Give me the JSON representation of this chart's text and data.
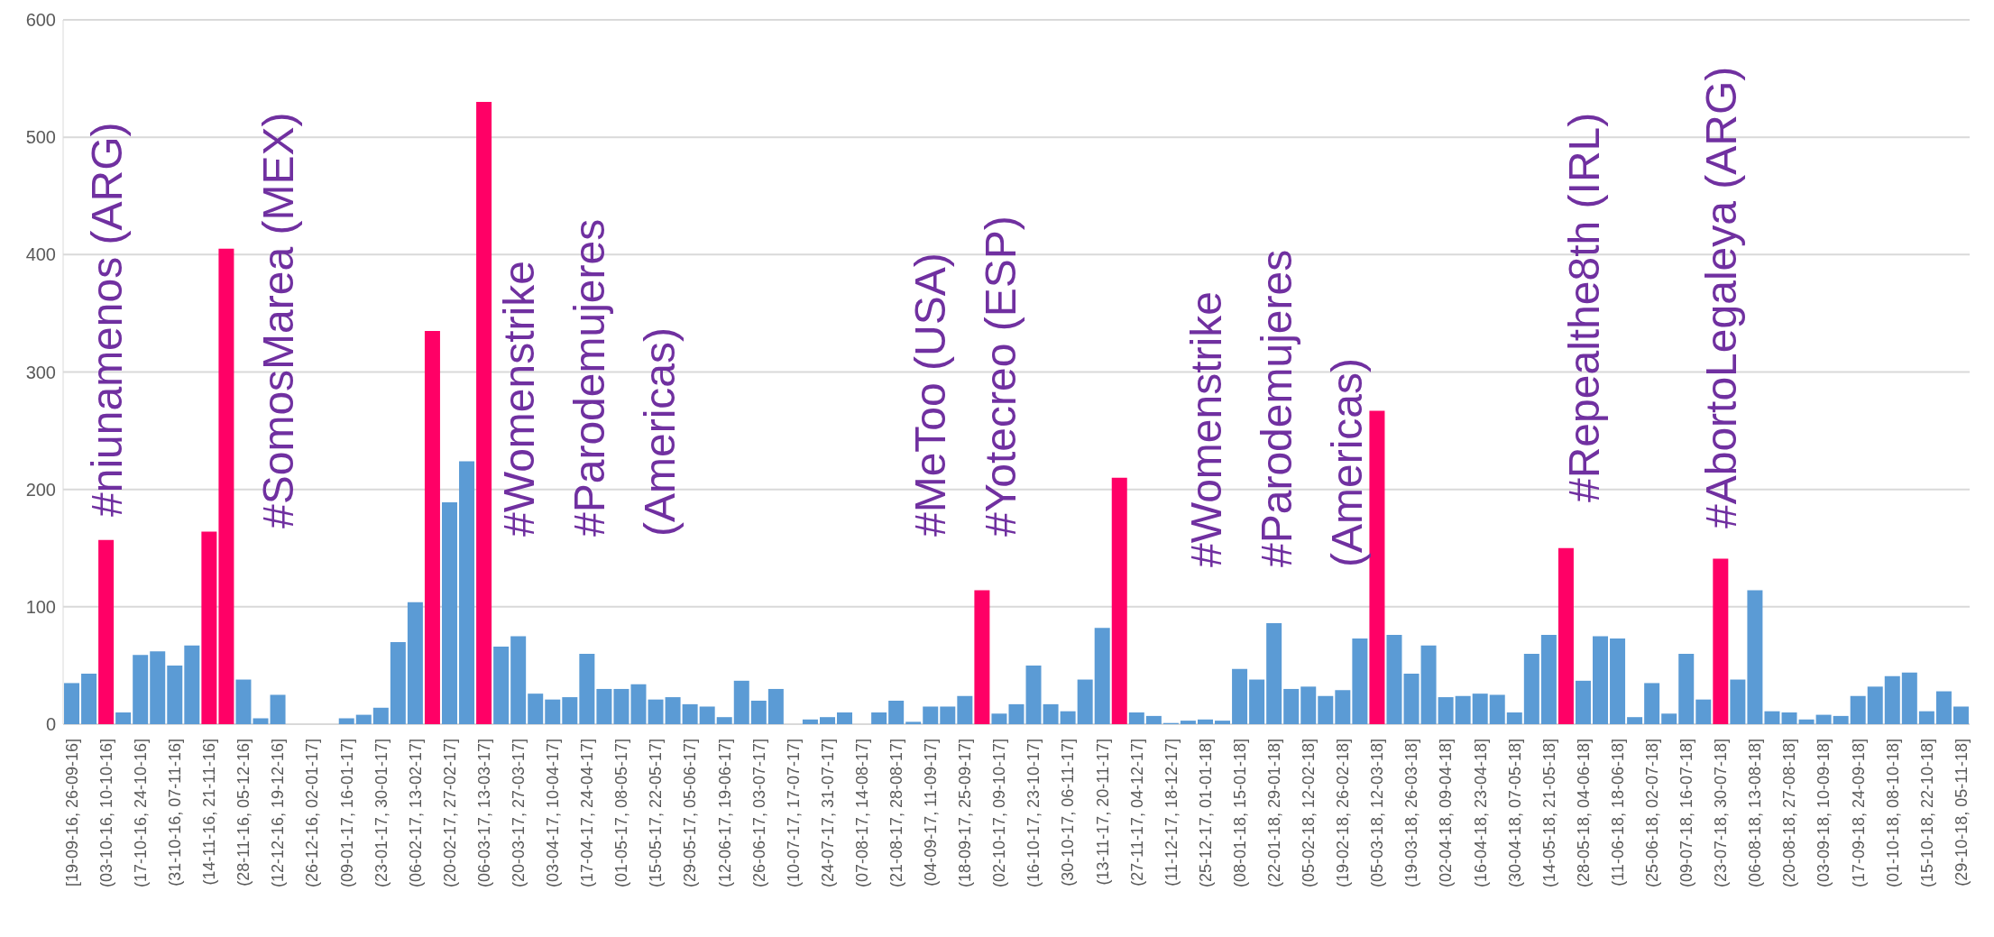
{
  "chart_data": {
    "type": "bar",
    "categories": [
      "[19-09-16, 26-09-16]",
      null,
      "(03-10-16, 10-10-16]",
      null,
      "(17-10-16, 24-10-16]",
      null,
      "(31-10-16, 07-11-16]",
      null,
      "(14-11-16, 21-11-16]",
      null,
      "(28-11-16, 05-12-16]",
      null,
      "(12-12-16, 19-12-16]",
      null,
      "(26-12-16, 02-01-17]",
      null,
      "(09-01-17, 16-01-17]",
      null,
      "(23-01-17, 30-01-17]",
      null,
      "(06-02-17, 13-02-17]",
      null,
      "(20-02-17, 27-02-17]",
      null,
      "(06-03-17, 13-03-17]",
      null,
      "(20-03-17, 27-03-17]",
      null,
      "(03-04-17, 10-04-17]",
      null,
      "(17-04-17, 24-04-17]",
      null,
      "(01-05-17, 08-05-17]",
      null,
      "(15-05-17, 22-05-17]",
      null,
      "(29-05-17, 05-06-17]",
      null,
      "(12-06-17, 19-06-17]",
      null,
      "(26-06-17, 03-07-17]",
      null,
      "(10-07-17, 17-07-17]",
      null,
      "(24-07-17, 31-07-17]",
      null,
      "(07-08-17, 14-08-17]",
      null,
      "(21-08-17, 28-08-17]",
      null,
      "(04-09-17, 11-09-17]",
      null,
      "(18-09-17, 25-09-17]",
      null,
      "(02-10-17, 09-10-17]",
      null,
      "(16-10-17, 23-10-17]",
      null,
      "(30-10-17, 06-11-17]",
      null,
      "(13-11-17, 20-11-17]",
      null,
      "(27-11-17, 04-12-17]",
      null,
      "(11-12-17, 18-12-17]",
      null,
      "(25-12-17, 01-01-18]",
      null,
      "(08-01-18, 15-01-18]",
      null,
      "(22-01-18, 29-01-18]",
      null,
      "(05-02-18, 12-02-18]",
      null,
      "(19-02-18, 26-02-18]",
      null,
      "(05-03-18, 12-03-18]",
      null,
      "(19-03-18, 26-03-18]",
      null,
      "(02-04-18, 09-04-18]",
      null,
      "(16-04-18, 23-04-18]",
      null,
      "(30-04-18, 07-05-18]",
      null,
      "(14-05-18, 21-05-18]",
      null,
      "(28-05-18, 04-06-18]",
      null,
      "(11-06-18, 18-06-18]",
      null,
      "(25-06-18, 02-07-18]",
      null,
      "(09-07-18, 16-07-18]",
      null,
      "(23-07-18, 30-07-18]",
      null,
      "(06-08-18, 13-08-18]",
      null,
      "(20-08-18, 27-08-18]",
      null,
      "(03-09-18, 10-09-18]",
      null,
      "(17-09-18, 24-09-18]",
      null,
      "(01-10-18, 08-10-18]",
      null,
      "(15-10-18, 22-10-18]",
      null,
      "(29-10-18, 05-11-18]"
    ],
    "values": [
      35,
      43,
      157,
      10,
      59,
      62,
      50,
      67,
      164,
      405,
      38,
      5,
      25,
      0,
      0,
      0,
      5,
      8,
      14,
      70,
      104,
      335,
      189,
      224,
      530,
      66,
      75,
      26,
      21,
      23,
      60,
      30,
      30,
      34,
      21,
      23,
      17,
      15,
      6,
      37,
      20,
      30,
      0,
      4,
      6,
      10,
      0,
      10,
      20,
      2,
      15,
      15,
      24,
      114,
      9,
      17,
      50,
      17,
      11,
      38,
      82,
      210,
      10,
      7,
      1,
      3,
      4,
      3,
      47,
      38,
      86,
      30,
      32,
      24,
      29,
      73,
      267,
      76,
      43,
      67,
      23,
      24,
      26,
      25,
      10,
      60,
      76,
      150,
      37,
      75,
      73,
      6,
      35,
      9,
      60,
      21,
      141,
      38,
      114,
      11,
      10,
      4,
      8,
      7,
      24,
      32,
      41,
      44,
      11,
      28,
      15
    ],
    "colors": [
      "#5b9bd5",
      "#5b9bd5",
      "#ff0066",
      "#5b9bd5",
      "#5b9bd5",
      "#5b9bd5",
      "#5b9bd5",
      "#5b9bd5",
      "#ff0066",
      "#ff0066",
      "#5b9bd5",
      "#5b9bd5",
      "#5b9bd5",
      "#5b9bd5",
      "#5b9bd5",
      "#5b9bd5",
      "#5b9bd5",
      "#5b9bd5",
      "#5b9bd5",
      "#5b9bd5",
      "#5b9bd5",
      "#ff0066",
      "#5b9bd5",
      "#5b9bd5",
      "#ff0066",
      "#5b9bd5",
      "#5b9bd5",
      "#5b9bd5",
      "#5b9bd5",
      "#5b9bd5",
      "#5b9bd5",
      "#5b9bd5",
      "#5b9bd5",
      "#5b9bd5",
      "#5b9bd5",
      "#5b9bd5",
      "#5b9bd5",
      "#5b9bd5",
      "#5b9bd5",
      "#5b9bd5",
      "#5b9bd5",
      "#5b9bd5",
      "#5b9bd5",
      "#5b9bd5",
      "#5b9bd5",
      "#5b9bd5",
      "#5b9bd5",
      "#5b9bd5",
      "#5b9bd5",
      "#5b9bd5",
      "#5b9bd5",
      "#5b9bd5",
      "#5b9bd5",
      "#ff0066",
      "#5b9bd5",
      "#5b9bd5",
      "#5b9bd5",
      "#5b9bd5",
      "#5b9bd5",
      "#5b9bd5",
      "#5b9bd5",
      "#ff0066",
      "#5b9bd5",
      "#5b9bd5",
      "#5b9bd5",
      "#5b9bd5",
      "#5b9bd5",
      "#5b9bd5",
      "#5b9bd5",
      "#5b9bd5",
      "#5b9bd5",
      "#5b9bd5",
      "#5b9bd5",
      "#5b9bd5",
      "#5b9bd5",
      "#5b9bd5",
      "#ff0066",
      "#5b9bd5",
      "#5b9bd5",
      "#5b9bd5",
      "#5b9bd5",
      "#5b9bd5",
      "#5b9bd5",
      "#5b9bd5",
      "#5b9bd5",
      "#5b9bd5",
      "#5b9bd5",
      "#ff0066",
      "#5b9bd5",
      "#5b9bd5",
      "#5b9bd5",
      "#5b9bd5",
      "#5b9bd5",
      "#5b9bd5",
      "#5b9bd5",
      "#5b9bd5",
      "#ff0066",
      "#5b9bd5",
      "#5b9bd5",
      "#5b9bd5",
      "#5b9bd5",
      "#5b9bd5",
      "#5b9bd5",
      "#5b9bd5",
      "#5b9bd5",
      "#5b9bd5",
      "#5b9bd5",
      "#5b9bd5",
      "#5b9bd5",
      "#5b9bd5",
      "#5b9bd5"
    ],
    "ylim": [
      0,
      600
    ],
    "yticks": [
      0,
      100,
      200,
      300,
      400,
      500,
      600
    ],
    "grid": "y",
    "annotations": [
      "#niunamenos (ARG)",
      "#SomosMarea (MEX)",
      "#Womenstrike\n#Parodemujeres\n(Americas)",
      "#MeToo (USA)\n#Yotecreo (ESP)",
      "#Womenstrike\n#Parodemujeres\n(Americas)",
      "#Repealthe8th (IRL)",
      "#AbortoLegaleya (ARG)"
    ]
  }
}
